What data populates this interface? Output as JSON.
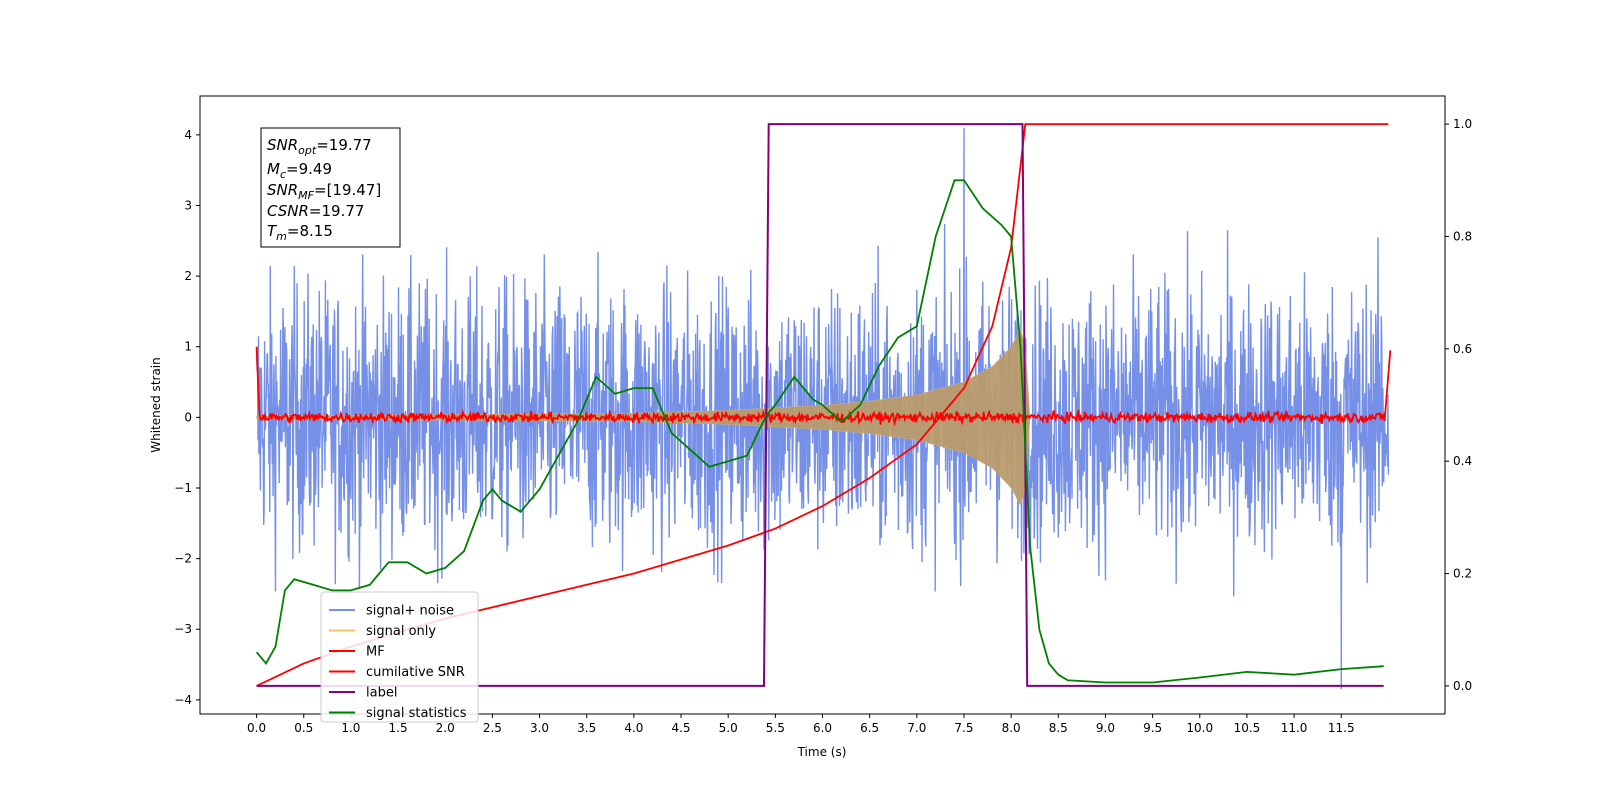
{
  "chart_data": {
    "type": "line",
    "title": "",
    "xlabel": "Time (s)",
    "ylabel": "Whitened strain",
    "xlim": [
      -0.6,
      12.6
    ],
    "ylim": [
      -4.2,
      4.55
    ],
    "y2lim": [
      -0.05,
      1.05
    ],
    "xticks": [
      "0.0",
      "0.5",
      "1.0",
      "1.5",
      "2.0",
      "2.5",
      "3.0",
      "3.5",
      "4.0",
      "4.5",
      "5.0",
      "5.5",
      "6.0",
      "6.5",
      "7.0",
      "7.5",
      "8.0",
      "8.5",
      "9.0",
      "9.5",
      "10.0",
      "10.5",
      "11.0",
      "11.5"
    ],
    "yticks": [
      "4",
      "3",
      "2",
      "1",
      "0",
      "−1",
      "−2",
      "−3",
      "−4"
    ],
    "y2ticks": [
      "1.0",
      "0.8",
      "0.6",
      "0.4",
      "0.2",
      "0.0"
    ],
    "grid": false,
    "legend_position": "lower-left",
    "info_box": {
      "snr_opt_base": "SNR",
      "snr_opt_sub": "opt",
      "snr_opt_val": "=19.77",
      "mc_base": "M",
      "mc_sub": "c",
      "mc_val": "=9.49",
      "snr_mf_base": "SNR",
      "snr_mf_sub": "MF",
      "snr_mf_val": "=[19.47]",
      "csnr_base": "CSNR",
      "csnr_val": "=19.77",
      "tm_base": "T",
      "tm_sub": "m",
      "tm_val": "=8.15"
    },
    "series": [
      {
        "name": "signal+ noise",
        "color": "#7590e6",
        "axis": "left",
        "description": "noise",
        "noise_amplitude": 2.2,
        "peak_amplitude": 4.2,
        "x_start": 0.0,
        "x_end": 12.0
      },
      {
        "name": "signal only",
        "color": "#f5c26b",
        "axis": "left",
        "envelope_t": [
          0.0,
          4.0,
          5.0,
          6.0,
          6.5,
          7.0,
          7.5,
          7.8,
          8.0,
          8.1,
          8.15,
          8.2
        ],
        "envelope_a": [
          0.02,
          0.06,
          0.1,
          0.17,
          0.23,
          0.32,
          0.5,
          0.72,
          1.0,
          1.25,
          1.0,
          0.0
        ]
      },
      {
        "name": "MF",
        "color": "#ff0000",
        "axis": "left",
        "x": [
          0.0,
          0.03,
          12.0,
          12.02
        ],
        "y": [
          1.0,
          0.05,
          0.0,
          0.95
        ]
      },
      {
        "name": "cumilative SNR",
        "color": "#ff0000",
        "axis": "right",
        "x": [
          0.0,
          0.5,
          1.0,
          2.0,
          3.0,
          4.0,
          5.0,
          5.5,
          6.0,
          6.5,
          7.0,
          7.5,
          7.8,
          8.0,
          8.15,
          8.2,
          12.0
        ],
        "y": [
          0.0,
          0.04,
          0.07,
          0.12,
          0.16,
          0.2,
          0.25,
          0.28,
          0.32,
          0.37,
          0.43,
          0.53,
          0.64,
          0.78,
          1.0,
          1.0,
          1.0
        ]
      },
      {
        "name": "label",
        "color": "#800080",
        "axis": "right",
        "x": [
          0.0,
          5.38,
          5.43,
          8.12,
          8.17,
          11.95
        ],
        "y": [
          0.0,
          0.0,
          1.0,
          1.0,
          0.0,
          0.0
        ]
      },
      {
        "name": "signal statistics",
        "color": "#008000",
        "axis": "right",
        "x": [
          0.0,
          0.1,
          0.2,
          0.3,
          0.4,
          0.6,
          0.8,
          1.0,
          1.2,
          1.4,
          1.6,
          1.7,
          1.8,
          2.0,
          2.2,
          2.4,
          2.5,
          2.6,
          2.8,
          3.0,
          3.2,
          3.4,
          3.6,
          3.8,
          4.0,
          4.2,
          4.4,
          4.6,
          4.8,
          5.0,
          5.2,
          5.4,
          5.5,
          5.7,
          5.9,
          6.0,
          6.2,
          6.4,
          6.6,
          6.8,
          7.0,
          7.2,
          7.4,
          7.5,
          7.7,
          7.9,
          8.0,
          8.1,
          8.2,
          8.3,
          8.4,
          8.5,
          8.6,
          8.8,
          9.0,
          9.5,
          10.0,
          10.5,
          11.0,
          11.5,
          11.95
        ],
        "y": [
          0.06,
          0.04,
          0.07,
          0.17,
          0.19,
          0.18,
          0.17,
          0.17,
          0.18,
          0.22,
          0.22,
          0.21,
          0.2,
          0.21,
          0.24,
          0.33,
          0.35,
          0.33,
          0.31,
          0.35,
          0.41,
          0.47,
          0.55,
          0.52,
          0.53,
          0.53,
          0.45,
          0.42,
          0.39,
          0.4,
          0.41,
          0.48,
          0.5,
          0.55,
          0.51,
          0.5,
          0.47,
          0.5,
          0.57,
          0.62,
          0.64,
          0.8,
          0.9,
          0.9,
          0.85,
          0.82,
          0.8,
          0.6,
          0.25,
          0.1,
          0.04,
          0.02,
          0.01,
          0.008,
          0.006,
          0.006,
          0.015,
          0.025,
          0.02,
          0.03,
          0.035
        ]
      }
    ]
  }
}
